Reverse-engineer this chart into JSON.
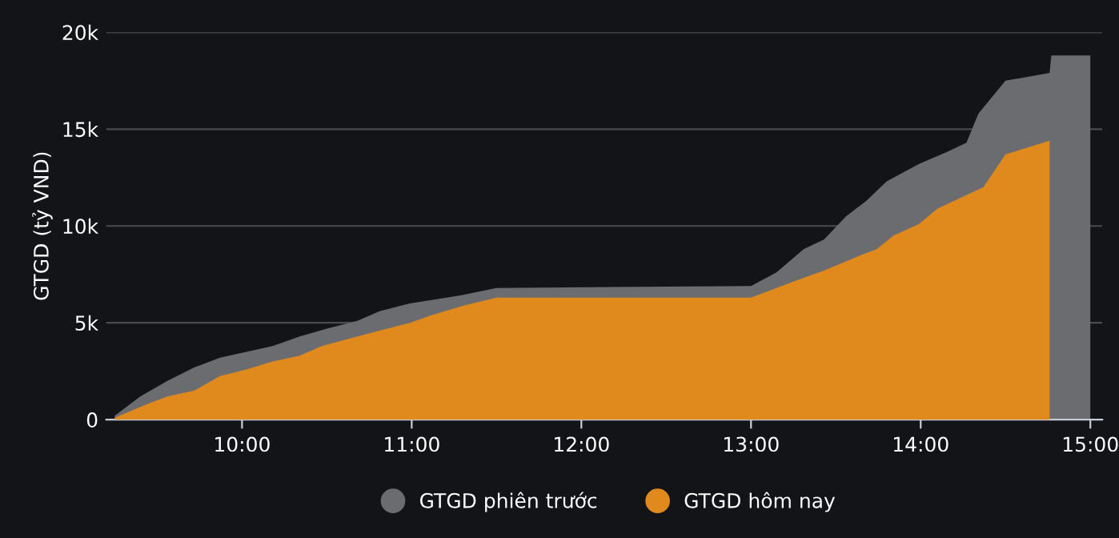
{
  "chart_data": {
    "type": "area",
    "ylabel": "GTGD (tỷ VND)",
    "series": [
      {
        "name": "GTGD phiên trước",
        "color": "#6b6c70",
        "x": [
          9.25,
          9.4,
          9.56,
          9.72,
          9.87,
          10.18,
          10.34,
          10.5,
          10.68,
          10.81,
          10.99,
          11.28,
          11.5,
          13.0,
          13.15,
          13.31,
          13.43,
          13.56,
          13.68,
          13.8,
          13.99,
          14.15,
          14.27,
          14.34,
          14.5,
          14.76,
          14.77,
          15.0
        ],
        "values": [
          200,
          1200,
          2000,
          2700,
          3200,
          3800,
          4300,
          4700,
          5100,
          5600,
          6000,
          6400,
          6800,
          6900,
          7600,
          8800,
          9300,
          10500,
          11300,
          12300,
          13200,
          13800,
          14300,
          15800,
          17500,
          17900,
          18800,
          18800
        ]
      },
      {
        "name": "GTGD hôm nay",
        "color": "#e08a1e",
        "x": [
          9.25,
          9.44,
          9.56,
          9.72,
          9.87,
          10.03,
          10.18,
          10.34,
          10.47,
          10.68,
          10.81,
          10.99,
          11.12,
          11.31,
          11.5,
          13.0,
          13.24,
          13.43,
          13.65,
          13.74,
          13.84,
          13.99,
          14.1,
          14.37,
          14.5,
          14.76
        ],
        "values": [
          100,
          800,
          1200,
          1500,
          2250,
          2600,
          3000,
          3300,
          3800,
          4300,
          4600,
          5000,
          5400,
          5900,
          6300,
          6300,
          7100,
          7700,
          8500,
          8800,
          9500,
          10100,
          10900,
          12000,
          13700,
          14400
        ]
      }
    ],
    "xlim": [
      9.2,
      15.07
    ],
    "xticks": [
      {
        "value": 10,
        "label": "10:00"
      },
      {
        "value": 11,
        "label": "11:00"
      },
      {
        "value": 12,
        "label": "12:00"
      },
      {
        "value": 13,
        "label": "13:00"
      },
      {
        "value": 14,
        "label": "14:00"
      },
      {
        "value": 15,
        "label": "15:00"
      }
    ],
    "ylim": [
      0,
      20000
    ],
    "yticks": [
      0,
      {
        "value": 5000,
        "label": "5k"
      },
      {
        "value": 10000,
        "label": "10k"
      },
      {
        "value": 15000,
        "label": "15k"
      },
      {
        "value": 20000,
        "label": "20k"
      }
    ],
    "grid": "y",
    "legend": "bottom"
  }
}
